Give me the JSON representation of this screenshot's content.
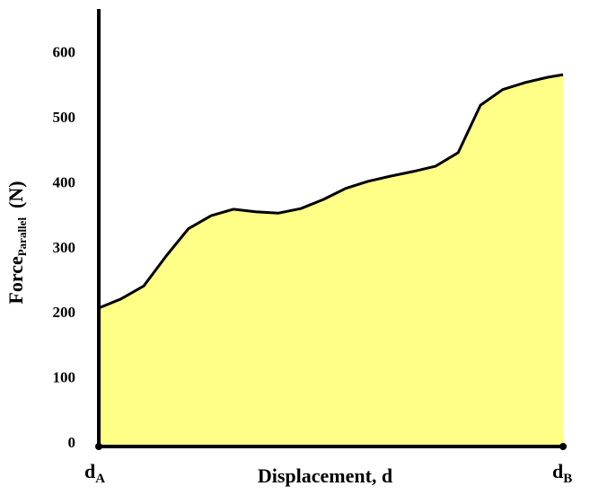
{
  "chart_data": {
    "type": "area",
    "y_label": {
      "main": "Force",
      "sub": "Parallel",
      "unit": "(N)"
    },
    "x_label": "Displacement, d",
    "x_end_labels": [
      {
        "main": "d",
        "sub": "A"
      },
      {
        "main": "d",
        "sub": "B"
      }
    ],
    "x": [
      0,
      4.8,
      9.7,
      14.5,
      19.3,
      24.2,
      29.0,
      33.8,
      38.7,
      43.5,
      48.4,
      53.2,
      58.0,
      62.9,
      67.7,
      72.5,
      77.4,
      82.2,
      87.0,
      91.9,
      96.7,
      100
    ],
    "values": [
      213,
      227,
      247,
      293,
      335,
      355,
      365,
      361,
      359,
      366,
      380,
      397,
      408,
      416,
      423,
      431,
      452,
      525,
      549,
      560,
      568,
      572
    ],
    "xlim": [
      0,
      100
    ],
    "ylim": [
      0,
      673
    ],
    "yticks": [
      0,
      100,
      200,
      300,
      400,
      500,
      600
    ],
    "fill": "#ffff88",
    "stroke": "#000000"
  }
}
